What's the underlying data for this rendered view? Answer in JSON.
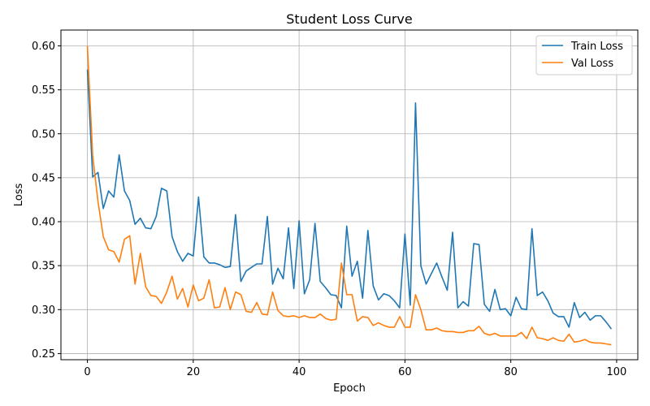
{
  "chart_data": {
    "type": "line",
    "title": "Student Loss Curve",
    "xlabel": "Epoch",
    "ylabel": "Loss",
    "xlim": [
      -5,
      104
    ],
    "ylim": [
      0.243,
      0.618
    ],
    "xticks": [
      0,
      20,
      40,
      60,
      80,
      100
    ],
    "xtick_labels": [
      "0",
      "20",
      "40",
      "60",
      "80",
      "100"
    ],
    "yticks": [
      0.25,
      0.3,
      0.35,
      0.4,
      0.45,
      0.5,
      0.55,
      0.6
    ],
    "ytick_labels": [
      "0.25",
      "0.30",
      "0.35",
      "0.40",
      "0.45",
      "0.50",
      "0.55",
      "0.60"
    ],
    "grid": true,
    "legend_position": "top-right",
    "x": [
      0,
      1,
      2,
      3,
      4,
      5,
      6,
      7,
      8,
      9,
      10,
      11,
      12,
      13,
      14,
      15,
      16,
      17,
      18,
      19,
      20,
      21,
      22,
      23,
      24,
      25,
      26,
      27,
      28,
      29,
      30,
      31,
      32,
      33,
      34,
      35,
      36,
      37,
      38,
      39,
      40,
      41,
      42,
      43,
      44,
      45,
      46,
      47,
      48,
      49,
      50,
      51,
      52,
      53,
      54,
      55,
      56,
      57,
      58,
      59,
      60,
      61,
      62,
      63,
      64,
      65,
      66,
      67,
      68,
      69,
      70,
      71,
      72,
      73,
      74,
      75,
      76,
      77,
      78,
      79,
      80,
      81,
      82,
      83,
      84,
      85,
      86,
      87,
      88,
      89,
      90,
      91,
      92,
      93,
      94,
      95,
      96,
      97,
      98,
      99
    ],
    "series": [
      {
        "name": "Train Loss",
        "color": "#1f77b4",
        "values": [
          0.573,
          0.451,
          0.456,
          0.415,
          0.435,
          0.428,
          0.476,
          0.435,
          0.424,
          0.397,
          0.404,
          0.393,
          0.392,
          0.406,
          0.438,
          0.435,
          0.383,
          0.366,
          0.355,
          0.364,
          0.361,
          0.428,
          0.36,
          0.353,
          0.353,
          0.351,
          0.348,
          0.349,
          0.408,
          0.332,
          0.344,
          0.348,
          0.352,
          0.352,
          0.406,
          0.329,
          0.347,
          0.335,
          0.393,
          0.324,
          0.401,
          0.318,
          0.334,
          0.398,
          0.332,
          0.325,
          0.317,
          0.316,
          0.302,
          0.395,
          0.338,
          0.355,
          0.313,
          0.39,
          0.327,
          0.311,
          0.318,
          0.316,
          0.31,
          0.302,
          0.386,
          0.305,
          0.535,
          0.35,
          0.329,
          0.341,
          0.353,
          0.337,
          0.322,
          0.388,
          0.302,
          0.309,
          0.304,
          0.375,
          0.374,
          0.306,
          0.298,
          0.323,
          0.3,
          0.301,
          0.293,
          0.314,
          0.301,
          0.3,
          0.392,
          0.316,
          0.32,
          0.31,
          0.296,
          0.292,
          0.292,
          0.28,
          0.308,
          0.291,
          0.297,
          0.288,
          0.293,
          0.293,
          0.286,
          0.278
        ]
      },
      {
        "name": "Val Loss",
        "color": "#ff7f0e",
        "values": [
          0.6,
          0.475,
          0.423,
          0.383,
          0.368,
          0.366,
          0.354,
          0.38,
          0.384,
          0.329,
          0.364,
          0.326,
          0.316,
          0.315,
          0.307,
          0.32,
          0.338,
          0.312,
          0.324,
          0.303,
          0.328,
          0.31,
          0.313,
          0.334,
          0.302,
          0.303,
          0.325,
          0.3,
          0.32,
          0.317,
          0.298,
          0.297,
          0.308,
          0.295,
          0.294,
          0.32,
          0.299,
          0.293,
          0.292,
          0.293,
          0.291,
          0.293,
          0.291,
          0.291,
          0.295,
          0.29,
          0.288,
          0.289,
          0.353,
          0.317,
          0.317,
          0.287,
          0.292,
          0.291,
          0.282,
          0.285,
          0.282,
          0.28,
          0.28,
          0.292,
          0.28,
          0.28,
          0.317,
          0.3,
          0.277,
          0.277,
          0.279,
          0.276,
          0.275,
          0.275,
          0.274,
          0.274,
          0.276,
          0.276,
          0.281,
          0.273,
          0.271,
          0.273,
          0.27,
          0.27,
          0.27,
          0.27,
          0.274,
          0.267,
          0.28,
          0.268,
          0.267,
          0.265,
          0.268,
          0.265,
          0.264,
          0.272,
          0.263,
          0.264,
          0.266,
          0.263,
          0.262,
          0.262,
          0.261,
          0.26
        ]
      }
    ]
  }
}
